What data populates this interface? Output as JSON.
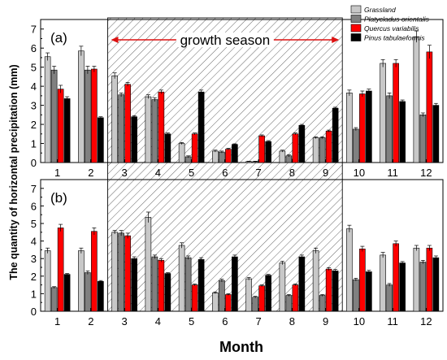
{
  "chart_data": {
    "type": "bar",
    "ylabel": "The quantity of horizontal precipitation (mm)",
    "xlabel": "Month",
    "ylim": [
      0,
      7.5
    ],
    "yticks": [
      0,
      1,
      2,
      3,
      4,
      5,
      6,
      7
    ],
    "categories": [
      "1",
      "2",
      "3",
      "4",
      "5",
      "6",
      "7",
      "8",
      "9",
      "10",
      "11",
      "12"
    ],
    "legend": {
      "placement": "top-right",
      "entries": [
        "Grassland",
        "Platycladus orientalis",
        "Quercus variabilis",
        "Pinus tabulaeformis"
      ]
    },
    "series_colors": [
      "#c8c8c8",
      "#808080",
      "#ff0000",
      "#000000"
    ],
    "annotation": {
      "text": "growth season",
      "from_month": "3",
      "to_month": "9",
      "color": "#dd1111"
    },
    "panels": [
      {
        "label": "(a)",
        "series": [
          {
            "values": [
              5.55,
              5.85,
              4.55,
              3.45,
              1.0,
              0.6,
              0.05,
              0.6,
              1.3,
              3.65,
              5.2,
              6.6
            ],
            "errors": [
              0.2,
              0.25,
              0.15,
              0.1,
              0.05,
              0.05,
              0.02,
              0.05,
              0.05,
              0.15,
              0.2,
              0.3
            ]
          },
          {
            "values": [
              4.85,
              4.85,
              3.55,
              3.3,
              0.3,
              0.55,
              0.05,
              0.35,
              1.3,
              1.75,
              3.5,
              2.5
            ],
            "errors": [
              0.2,
              0.2,
              0.1,
              0.1,
              0.05,
              0.05,
              0.02,
              0.05,
              0.05,
              0.08,
              0.15,
              0.1
            ]
          },
          {
            "values": [
              3.85,
              4.9,
              4.1,
              3.7,
              1.5,
              0.7,
              1.4,
              1.5,
              1.65,
              3.6,
              5.2,
              5.8
            ],
            "errors": [
              0.2,
              0.15,
              0.1,
              0.1,
              0.05,
              0.05,
              0.05,
              0.05,
              0.05,
              0.15,
              0.2,
              0.35
            ]
          },
          {
            "values": [
              3.35,
              2.35,
              2.4,
              1.5,
              3.7,
              0.95,
              1.1,
              1.95,
              2.85,
              3.75,
              3.2,
              3.0
            ],
            "errors": [
              0.1,
              0.05,
              0.05,
              0.05,
              0.1,
              0.03,
              0.05,
              0.05,
              0.05,
              0.1,
              0.08,
              0.1
            ]
          }
        ]
      },
      {
        "label": "(b)",
        "series": [
          {
            "values": [
              3.45,
              3.45,
              4.5,
              5.35,
              3.75,
              1.05,
              1.85,
              2.75,
              3.45,
              4.7,
              3.2,
              3.6
            ],
            "errors": [
              0.15,
              0.15,
              0.1,
              0.3,
              0.15,
              0.05,
              0.08,
              0.1,
              0.15,
              0.2,
              0.15,
              0.15
            ]
          },
          {
            "values": [
              1.35,
              2.2,
              4.45,
              3.1,
              3.05,
              1.75,
              0.8,
              0.9,
              0.9,
              1.8,
              1.5,
              2.8
            ],
            "errors": [
              0.05,
              0.1,
              0.15,
              0.1,
              0.1,
              0.08,
              0.05,
              0.05,
              0.05,
              0.08,
              0.08,
              0.1
            ]
          },
          {
            "values": [
              4.75,
              4.55,
              4.3,
              2.9,
              1.5,
              0.95,
              1.45,
              1.5,
              2.4,
              3.55,
              3.85,
              3.6
            ],
            "errors": [
              0.2,
              0.2,
              0.15,
              0.1,
              0.05,
              0.05,
              0.05,
              0.05,
              0.08,
              0.15,
              0.15,
              0.15
            ]
          },
          {
            "values": [
              2.1,
              1.7,
              3.0,
              2.15,
              2.95,
              3.1,
              2.05,
              3.1,
              2.3,
              2.25,
              2.75,
              3.05
            ],
            "errors": [
              0.05,
              0.05,
              0.1,
              0.05,
              0.1,
              0.1,
              0.05,
              0.1,
              0.08,
              0.08,
              0.08,
              0.1
            ]
          }
        ]
      }
    ]
  }
}
